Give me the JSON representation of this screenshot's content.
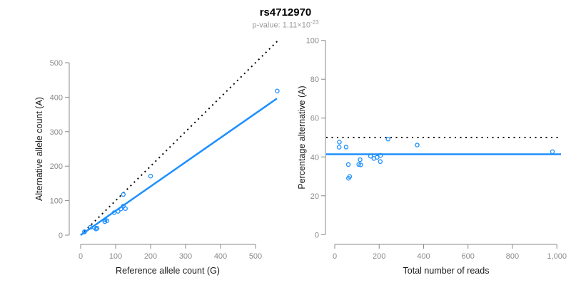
{
  "header": {
    "title": "rs4712970",
    "pvalue_label": "p-value: ",
    "pvalue_base": "1.11×10",
    "pvalue_exponent": "-23"
  },
  "colors": {
    "accent_blue": "#1E90FF",
    "axis_gray": "#8A8A8A",
    "tick_label_gray": "#8A8A8A",
    "subtitle_gray": "#9A9A9A",
    "reference_line_black": "#000000"
  },
  "chart_data": [
    {
      "type": "scatter",
      "panel": "left",
      "xlabel": "Reference allele count (G)",
      "ylabel": "Alternative allele count (A)",
      "xlim": [
        0,
        565
      ],
      "ylim": [
        0,
        565
      ],
      "xticks": [
        0,
        100,
        200,
        300,
        400,
        500
      ],
      "xtick_labels": [
        "0",
        "100",
        "200",
        "300",
        "400",
        "500"
      ],
      "yticks": [
        0,
        100,
        200,
        300,
        400,
        500
      ],
      "ytick_labels": [
        "0",
        "100",
        "200",
        "300",
        "400",
        "500"
      ],
      "grid": false,
      "points": [
        [
          11,
          10
        ],
        [
          11,
          9
        ],
        [
          28,
          23
        ],
        [
          39,
          22
        ],
        [
          44,
          18
        ],
        [
          47,
          20
        ],
        [
          69,
          39
        ],
        [
          75,
          42
        ],
        [
          70,
          44
        ],
        [
          96,
          65
        ],
        [
          107,
          69
        ],
        [
          115,
          76
        ],
        [
          122,
          84
        ],
        [
          128,
          77
        ],
        [
          122,
          118
        ],
        [
          200,
          171
        ],
        [
          562,
          418
        ]
      ],
      "identity_line": {
        "style": "dotted",
        "color": "#000000",
        "from": [
          0,
          0
        ],
        "to": [
          565,
          565
        ]
      },
      "fit_line": {
        "style": "solid",
        "color": "#1E90FF",
        "slope": 0.71,
        "from": [
          0,
          0
        ],
        "to": [
          561,
          396
        ]
      }
    },
    {
      "type": "scatter",
      "panel": "right",
      "xlabel": "Total number of reads",
      "ylabel": "Percentage alternative (A)",
      "xlim": [
        0,
        1040
      ],
      "ylim": [
        0,
        100
      ],
      "xticks": [
        0,
        200,
        400,
        600,
        800,
        1000
      ],
      "xtick_labels": [
        "0",
        "200",
        "400",
        "600",
        "800",
        "1,000"
      ],
      "yticks": [
        0,
        20,
        40,
        60,
        80,
        100
      ],
      "ytick_labels": [
        "0",
        "20",
        "40",
        "60",
        "80",
        "100"
      ],
      "grid": false,
      "points": [
        [
          21,
          47.6
        ],
        [
          20,
          45.0
        ],
        [
          51,
          45.1
        ],
        [
          61,
          36.1
        ],
        [
          62,
          29.0
        ],
        [
          67,
          29.9
        ],
        [
          108,
          36.1
        ],
        [
          117,
          35.9
        ],
        [
          114,
          38.6
        ],
        [
          161,
          40.4
        ],
        [
          176,
          39.2
        ],
        [
          191,
          39.8
        ],
        [
          206,
          40.8
        ],
        [
          205,
          37.6
        ],
        [
          240,
          49.2
        ],
        [
          371,
          46.1
        ],
        [
          980,
          42.7
        ]
      ],
      "hlines": [
        {
          "name": "fifty-percent-line",
          "y": 50,
          "style": "dotted",
          "color": "#000000"
        },
        {
          "name": "fit-percent-line",
          "y": 41.4,
          "style": "solid",
          "color": "#1E90FF"
        }
      ]
    }
  ]
}
